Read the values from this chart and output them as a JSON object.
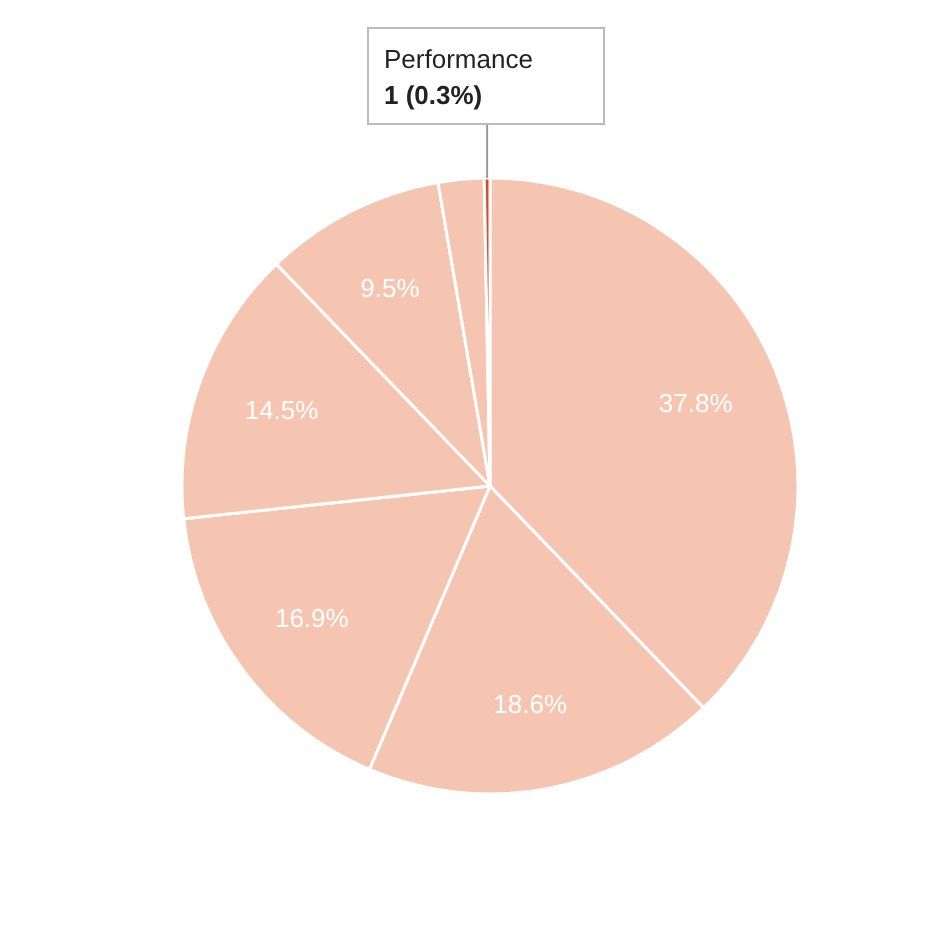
{
  "chart_data": {
    "type": "pie",
    "categories": [
      null,
      null,
      null,
      null,
      null,
      null,
      "Performance"
    ],
    "values": [
      37.8,
      18.6,
      16.9,
      14.5,
      9.5,
      2.4,
      0.3
    ],
    "colors": [
      "#f5c5b1",
      "#f5c5b1",
      "#f5c5b1",
      "#f5c5b1",
      "#f5c5b1",
      "#f5c5b1",
      "#dc4a2c"
    ],
    "value_labels": [
      "37.8%",
      "18.6%",
      "16.9%",
      "14.5%",
      "9.5%",
      null,
      "1 (0.3%)"
    ]
  }
}
